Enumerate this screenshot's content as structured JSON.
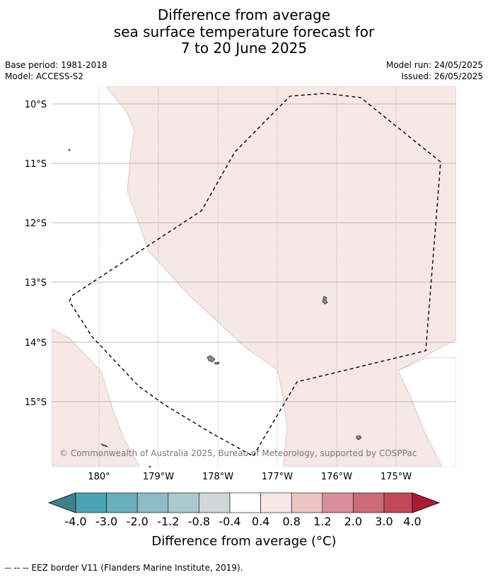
{
  "title": {
    "line1": "Difference from average",
    "line2": "sea surface temperature forecast for",
    "line3": "7 to 20 June 2025"
  },
  "meta": {
    "base_period": "Base period: 1981-2018",
    "model": "Model: ACCESS-S2",
    "model_run": "Model run: 24/05/2025",
    "issued": "Issued: 26/05/2025"
  },
  "map": {
    "lat_labels": [
      "10°S",
      "11°S",
      "12°S",
      "13°S",
      "14°S",
      "15°S"
    ],
    "lon_labels": [
      "180°",
      "179°W",
      "178°W",
      "177°W",
      "176°W",
      "175°W"
    ],
    "copyright": "© Commonwealth of Australia 2025, Bureau of Meteorology, supported by COSPPac",
    "colors": {
      "anomaly_fill": "#f5e8e7",
      "ocean": "#ffffff",
      "island": "#888888",
      "grid": "#aaaaaa"
    }
  },
  "colorbar": {
    "labels": [
      "-4.0",
      "-3.0",
      "-2.0",
      "-1.2",
      "-0.8",
      "-0.4",
      "0.4",
      "0.8",
      "1.2",
      "2.0",
      "3.0",
      "4.0"
    ],
    "colors": [
      "#3f7f8b",
      "#4aa3b3",
      "#6aaebb",
      "#8dbcc6",
      "#aac8cd",
      "#d0d8da",
      "#ffffff",
      "#f5e8e7",
      "#ebc6c3",
      "#d7909a",
      "#cc6b78",
      "#c24858",
      "#a81c38"
    ],
    "title": "Difference from average (°C)"
  },
  "footer": "-- -- -- EEZ border V11 (Flanders Marine Institute, 2019)."
}
